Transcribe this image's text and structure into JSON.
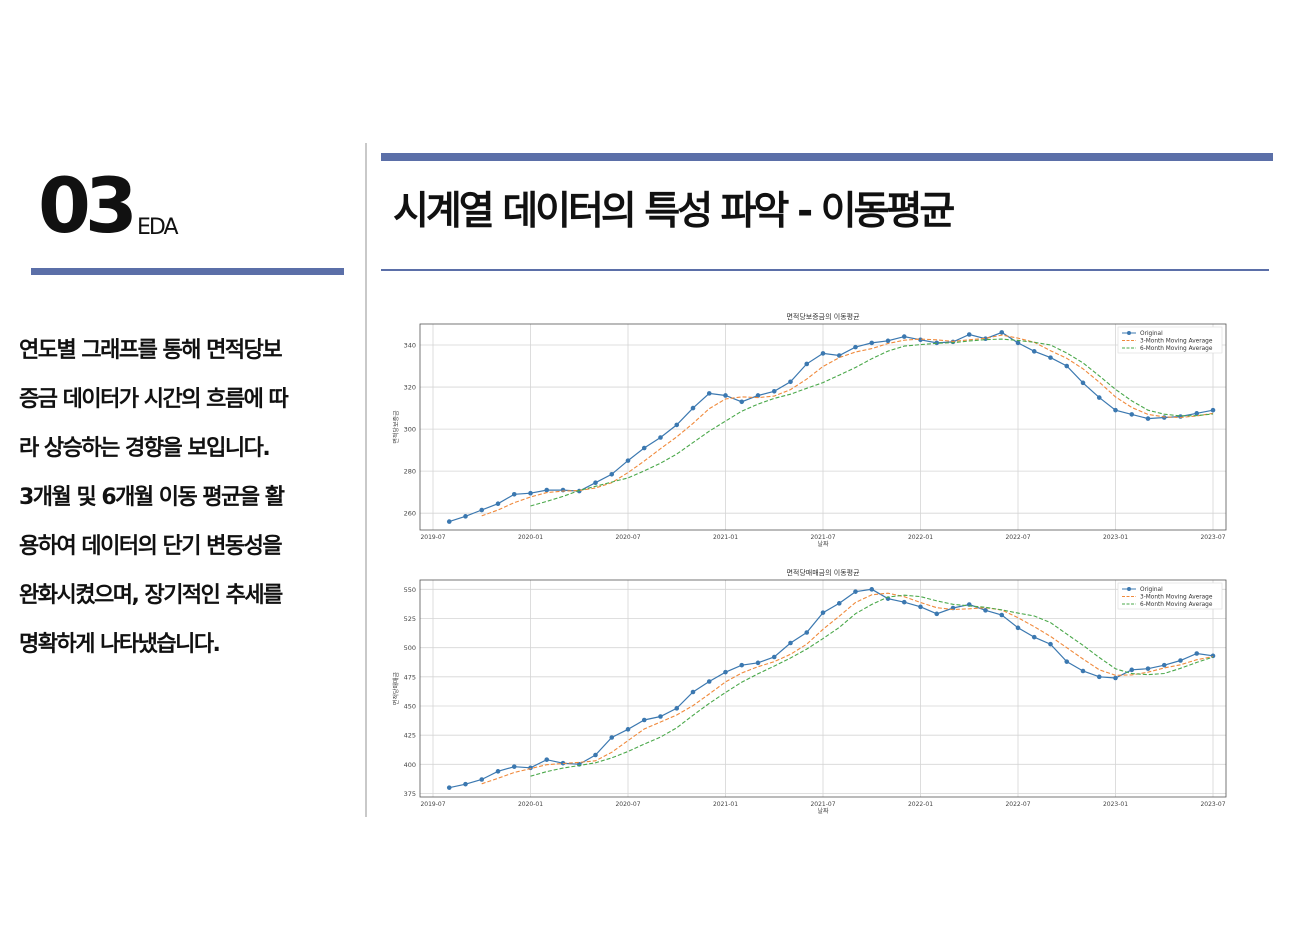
{
  "header": {
    "section_number": "03",
    "section_label": "EDA",
    "title": "시계열 데이터의 특성 파악 - 이동평균"
  },
  "description_lines": [
    "연도별 그래프를 통해 면적당보",
    "증금 데이터가 시간의 흐름에 따",
    "라 상승하는 경향을 보입니다.",
    "3개월 및 6개월 이동 평균을 활",
    "용하여 데이터의 단기 변동성을",
    "완화시켰으며, 장기적인 추세를",
    "명확하게 나타냈습니다."
  ],
  "colors": {
    "accent": "#5b6fa8",
    "original": "#3b78b0",
    "ma3": "#f08a3c",
    "ma6": "#4aa84a"
  },
  "chart_data": [
    {
      "type": "line",
      "title": "면적당보증금의 이동평균",
      "xlabel": "날짜",
      "ylabel": "면적당보증금",
      "x": [
        "2019-08",
        "2019-09",
        "2019-10",
        "2019-11",
        "2019-12",
        "2020-01",
        "2020-02",
        "2020-03",
        "2020-04",
        "2020-05",
        "2020-06",
        "2020-07",
        "2020-08",
        "2020-09",
        "2020-10",
        "2020-11",
        "2020-12",
        "2021-01",
        "2021-02",
        "2021-03",
        "2021-04",
        "2021-05",
        "2021-06",
        "2021-07",
        "2021-08",
        "2021-09",
        "2021-10",
        "2021-11",
        "2021-12",
        "2022-01",
        "2022-02",
        "2022-03",
        "2022-04",
        "2022-05",
        "2022-06",
        "2022-07",
        "2022-08",
        "2022-09",
        "2022-10",
        "2022-11",
        "2022-12",
        "2023-01",
        "2023-02",
        "2023-03",
        "2023-04",
        "2023-05",
        "2023-06",
        "2023-07"
      ],
      "xticks": [
        "2019-07",
        "2020-01",
        "2020-07",
        "2021-01",
        "2021-07",
        "2022-01",
        "2022-07",
        "2023-01",
        "2023-07"
      ],
      "yticks": [
        260,
        280,
        300,
        320,
        340
      ],
      "ylim": [
        252,
        350
      ],
      "grid": true,
      "legend_position": "top-right",
      "series": [
        {
          "name": "Original",
          "style": "solid-marker",
          "values": [
            256,
            258.5,
            261.5,
            264.5,
            269,
            269.5,
            271,
            271,
            270.5,
            274.5,
            278.5,
            285,
            291,
            296,
            302,
            310,
            317,
            316,
            313,
            316,
            318,
            322.5,
            331,
            336,
            335,
            339,
            341,
            342,
            344,
            342.5,
            341,
            341.5,
            345,
            343,
            346,
            341,
            337,
            334,
            330,
            322,
            315,
            309,
            307,
            305,
            305.5,
            306,
            307.5,
            309
          ]
        },
        {
          "name": "3-Month Moving Average",
          "style": "dashed",
          "values": [
            null,
            null,
            258.7,
            261.5,
            265,
            267.7,
            269.8,
            270.5,
            270.8,
            272,
            274.5,
            279.3,
            284.8,
            290.7,
            296.3,
            302.7,
            309.7,
            314.3,
            315.3,
            315,
            315.7,
            318.8,
            323.8,
            329.8,
            334,
            336.7,
            338.3,
            340.7,
            342.3,
            342.8,
            342.5,
            341.7,
            342.5,
            343.2,
            344.7,
            343.3,
            341.3,
            337.3,
            333.7,
            328.7,
            322.3,
            315.3,
            310.3,
            307,
            305.8,
            305.5,
            306.3,
            307.5
          ]
        },
        {
          "name": "6-Month Moving Average",
          "style": "dashed",
          "values": [
            null,
            null,
            null,
            null,
            null,
            263.4,
            265.6,
            268,
            270.8,
            272.8,
            274.8,
            276.8,
            280.1,
            283.8,
            288.1,
            293.6,
            299,
            303.8,
            308.5,
            311.9,
            314.6,
            316.6,
            319.4,
            322.1,
            325.7,
            329.3,
            333.5,
            337.1,
            339.5,
            340.2,
            340.8,
            341.1,
            341.9,
            342.6,
            342.8,
            342.2,
            341.3,
            340,
            336.2,
            331.5,
            325.3,
            318.9,
            313.4,
            309,
            307.1,
            306.3,
            306.4,
            307.2
          ]
        }
      ]
    },
    {
      "type": "line",
      "title": "면적당매매금의 이동평균",
      "xlabel": "날짜",
      "ylabel": "면적당매매금",
      "x": [
        "2019-08",
        "2019-09",
        "2019-10",
        "2019-11",
        "2019-12",
        "2020-01",
        "2020-02",
        "2020-03",
        "2020-04",
        "2020-05",
        "2020-06",
        "2020-07",
        "2020-08",
        "2020-09",
        "2020-10",
        "2020-11",
        "2020-12",
        "2021-01",
        "2021-02",
        "2021-03",
        "2021-04",
        "2021-05",
        "2021-06",
        "2021-07",
        "2021-08",
        "2021-09",
        "2021-10",
        "2021-11",
        "2021-12",
        "2022-01",
        "2022-02",
        "2022-03",
        "2022-04",
        "2022-05",
        "2022-06",
        "2022-07",
        "2022-08",
        "2022-09",
        "2022-10",
        "2022-11",
        "2022-12",
        "2023-01",
        "2023-02",
        "2023-03",
        "2023-04",
        "2023-05",
        "2023-06",
        "2023-07"
      ],
      "xticks": [
        "2019-07",
        "2020-01",
        "2020-07",
        "2021-01",
        "2021-07",
        "2022-01",
        "2022-07",
        "2023-01",
        "2023-07"
      ],
      "yticks": [
        375,
        400,
        425,
        450,
        475,
        500,
        525,
        550
      ],
      "ylim": [
        372,
        558
      ],
      "grid": true,
      "legend_position": "top-right",
      "series": [
        {
          "name": "Original",
          "style": "solid-marker",
          "values": [
            380,
            383,
            387,
            394,
            398,
            397,
            404,
            401,
            400,
            408,
            423,
            430,
            438,
            441,
            448,
            462,
            471,
            479,
            485,
            487,
            492,
            504,
            513,
            530,
            538,
            548,
            550,
            542,
            539,
            535,
            529,
            534,
            537,
            532,
            528,
            517,
            509,
            503,
            488,
            480,
            475,
            474,
            481,
            482,
            485,
            489,
            495,
            493
          ]
        },
        {
          "name": "3-Month Moving Average",
          "style": "dashed",
          "values": [
            null,
            null,
            383.3,
            388,
            393,
            396.3,
            399.7,
            400.7,
            401.7,
            403,
            410.3,
            420.3,
            430.3,
            436.3,
            442.3,
            450.3,
            460.3,
            470.7,
            478.3,
            483.7,
            488,
            494.3,
            503,
            515.7,
            527,
            538.7,
            545.3,
            546.7,
            543.7,
            538.7,
            534.3,
            532.7,
            533.3,
            534.3,
            532.3,
            525.7,
            518,
            509.7,
            500,
            490.3,
            481,
            476.3,
            476.7,
            479,
            482.7,
            485.3,
            489.7,
            492.3
          ]
        },
        {
          "name": "6-Month Moving Average",
          "style": "dashed",
          "values": [
            null,
            null,
            null,
            null,
            null,
            389.8,
            393.8,
            396.8,
            399,
            401.3,
            405.5,
            411,
            417.3,
            423.3,
            431.3,
            442,
            452.2,
            461.6,
            470.4,
            477.6,
            484.2,
            491.1,
            498.8,
            507.8,
            517.4,
            529.1,
            537.1,
            543.4,
            545,
            543.8,
            540.1,
            537.2,
            535.8,
            534.6,
            532.4,
            529.6,
            527.1,
            521.5,
            511.6,
            502,
            491.6,
            481.9,
            477.8,
            476.9,
            477.9,
            482.3,
            487.4,
            491.9
          ]
        }
      ]
    }
  ]
}
